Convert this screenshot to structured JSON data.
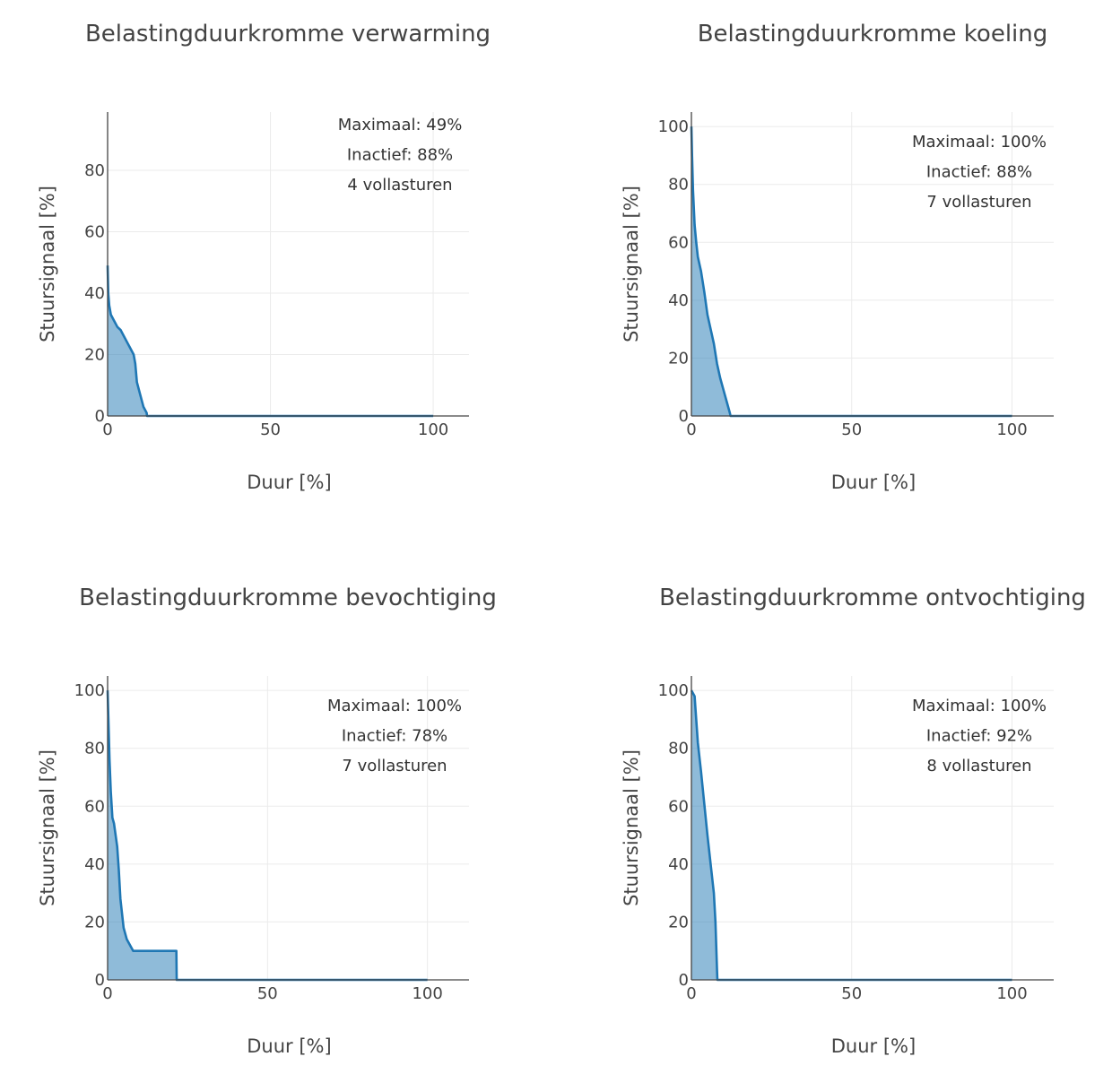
{
  "chart_data": [
    {
      "type": "area",
      "title": "Belastingduurkromme verwarming",
      "xlabel": "Duur [%]",
      "ylabel": "Stuursignaal [%]",
      "xlim": [
        0,
        111
      ],
      "ylim": [
        0,
        100
      ],
      "xticks": [
        0,
        50,
        100
      ],
      "yticks": [
        0,
        20,
        40,
        60,
        80
      ],
      "annotations": [
        "Maximaal: 49%",
        "Inactief: 88%",
        "4 vollasturen"
      ],
      "series": [
        {
          "name": "verwarming",
          "x": [
            0,
            0.2,
            0.5,
            1,
            2,
            3,
            4,
            5,
            6,
            7,
            8,
            8.5,
            9,
            10,
            11,
            12,
            12.1,
            20,
            40,
            60,
            80,
            100
          ],
          "y": [
            49,
            40,
            36,
            33,
            31,
            29,
            28,
            26,
            24,
            22,
            20,
            17,
            11,
            7,
            3,
            1,
            0,
            0,
            0,
            0,
            0,
            0
          ]
        }
      ]
    },
    {
      "type": "area",
      "title": "Belastingduurkromme koeling",
      "xlabel": "Duur [%]",
      "ylabel": "Stuursignaal [%]",
      "xlim": [
        0,
        113
      ],
      "ylim": [
        0,
        100
      ],
      "xticks": [
        0,
        50,
        100
      ],
      "yticks": [
        0,
        20,
        40,
        60,
        80,
        100
      ],
      "annotations": [
        "Maximaal: 100%",
        "Inactief: 88%",
        "7 vollasturen"
      ],
      "series": [
        {
          "name": "koeling",
          "x": [
            0,
            0.2,
            0.5,
            1,
            1.5,
            2,
            3,
            4,
            5,
            6,
            7,
            8,
            9,
            10,
            11,
            12,
            12.2,
            20,
            40,
            60,
            80,
            100
          ],
          "y": [
            100,
            90,
            78,
            66,
            60,
            55,
            50,
            43,
            35,
            30,
            25,
            18,
            13,
            9,
            5,
            1,
            0,
            0,
            0,
            0,
            0,
            0
          ]
        }
      ]
    },
    {
      "type": "area",
      "title": "Belastingduurkromme bevochtiging",
      "xlabel": "Duur [%]",
      "ylabel": "Stuursignaal [%]",
      "xlim": [
        0,
        113
      ],
      "ylim": [
        0,
        100
      ],
      "xticks": [
        0,
        50,
        100
      ],
      "yticks": [
        0,
        20,
        40,
        60,
        80,
        100
      ],
      "annotations": [
        "Maximaal: 100%",
        "Inactief: 78%",
        "7 vollasturen"
      ],
      "series": [
        {
          "name": "bevochtiging",
          "x": [
            0,
            0.3,
            0.6,
            1,
            1.5,
            2,
            3,
            3.5,
            4,
            5,
            6,
            7,
            8,
            15,
            21.5,
            21.6,
            40,
            60,
            80,
            100
          ],
          "y": [
            100,
            88,
            76,
            65,
            56,
            54,
            46,
            38,
            28,
            18,
            14,
            12,
            10,
            10,
            10,
            0,
            0,
            0,
            0,
            0
          ]
        }
      ]
    },
    {
      "type": "area",
      "title": "Belastingduurkromme ontvochtiging",
      "xlabel": "Duur [%]",
      "ylabel": "Stuursignaal [%]",
      "xlim": [
        0,
        113
      ],
      "ylim": [
        0,
        100
      ],
      "xticks": [
        0,
        50,
        100
      ],
      "yticks": [
        0,
        20,
        40,
        60,
        80,
        100
      ],
      "annotations": [
        "Maximaal: 100%",
        "Inactief: 92%",
        "8 vollasturen"
      ],
      "series": [
        {
          "name": "ontvochtiging",
          "x": [
            0,
            1,
            1.5,
            2,
            3,
            4,
            5,
            6,
            7,
            7.5,
            8,
            8.1,
            20,
            40,
            60,
            80,
            100
          ],
          "y": [
            100,
            98,
            90,
            82,
            72,
            61,
            50,
            40,
            30,
            20,
            3,
            0,
            0,
            0,
            0,
            0,
            0
          ]
        }
      ]
    }
  ],
  "colors": {
    "line": "#1f77b4",
    "fill": "#1f77b4",
    "fill_opacity": "0.5",
    "grid": "#ebebeb",
    "text": "#444444"
  }
}
